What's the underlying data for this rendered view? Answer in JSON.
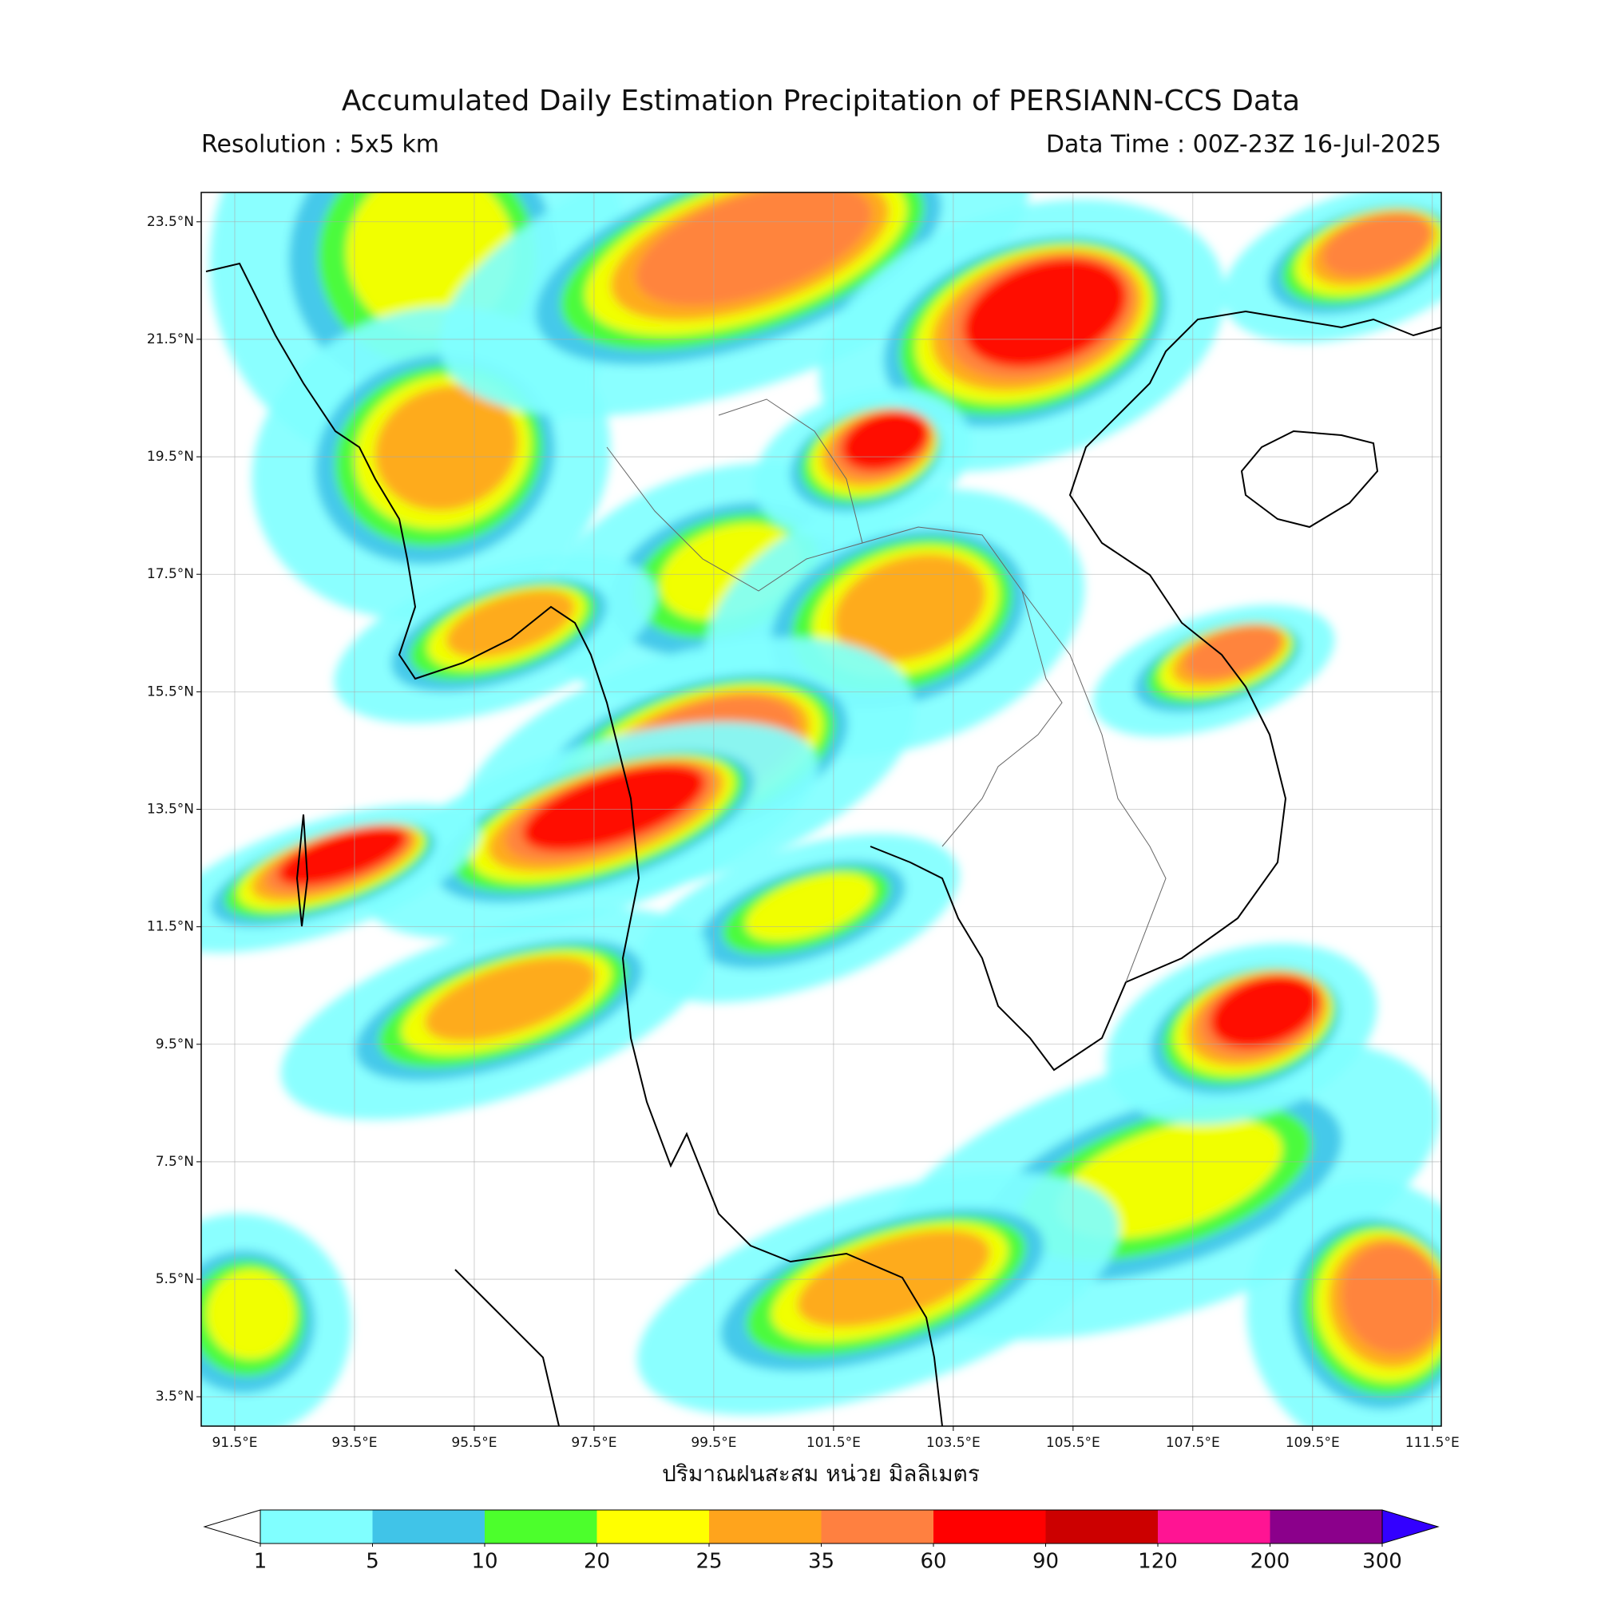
{
  "title": "Accumulated Daily Estimation Precipitation of PERSIANN-CCS Data",
  "subtitle_left": "Resolution : 5x5 km",
  "subtitle_right": "Data Time : 00Z-23Z 16-Jul-2025",
  "map": {
    "xlim": [
      90.94,
      111.65
    ],
    "ylim": [
      3.0,
      24.0
    ],
    "xticks": [
      {
        "value": 91.5,
        "label": "91.5°E"
      },
      {
        "value": 93.5,
        "label": "93.5°E"
      },
      {
        "value": 95.5,
        "label": "95.5°E"
      },
      {
        "value": 97.5,
        "label": "97.5°E"
      },
      {
        "value": 99.5,
        "label": "99.5°E"
      },
      {
        "value": 101.5,
        "label": "101.5°E"
      },
      {
        "value": 103.5,
        "label": "103.5°E"
      },
      {
        "value": 105.5,
        "label": "105.5°E"
      },
      {
        "value": 107.5,
        "label": "107.5°E"
      },
      {
        "value": 109.5,
        "label": "109.5°E"
      },
      {
        "value": 111.5,
        "label": "111.5°E"
      }
    ],
    "yticks": [
      {
        "value": 3.5,
        "label": "3.5°N"
      },
      {
        "value": 5.5,
        "label": "5.5°N"
      },
      {
        "value": 7.5,
        "label": "7.5°N"
      },
      {
        "value": 9.5,
        "label": "9.5°N"
      },
      {
        "value": 11.5,
        "label": "11.5°N"
      },
      {
        "value": 13.5,
        "label": "13.5°N"
      },
      {
        "value": 15.5,
        "label": "15.5°N"
      },
      {
        "value": 17.5,
        "label": "17.5°N"
      },
      {
        "value": 19.5,
        "label": "19.5°N"
      },
      {
        "value": 21.5,
        "label": "21.5°N"
      },
      {
        "value": 23.5,
        "label": "23.5°N"
      }
    ],
    "grid": true
  },
  "colorbar": {
    "label": "ปริมาณฝนสะสม หน่วย มิลลิเมตร",
    "levels": [
      1,
      5,
      10,
      20,
      25,
      35,
      60,
      90,
      120,
      200,
      300
    ],
    "colors": [
      "#80ffff",
      "#40c4e8",
      "#4cff2c",
      "#ffff00",
      "#ffa41c",
      "#ff8040",
      "#ff0000",
      "#cc0000",
      "#ff1493",
      "#8b008b"
    ],
    "under_color": "#ffffff",
    "over_color": "#3300ff"
  }
}
